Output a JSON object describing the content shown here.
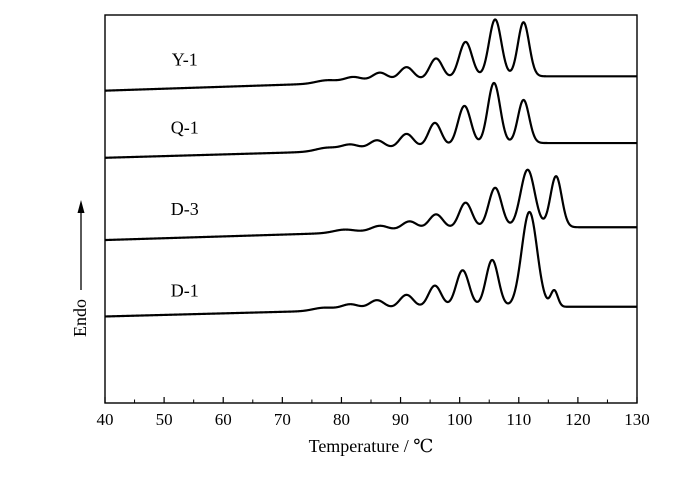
{
  "chart_data": {
    "type": "line",
    "title": "",
    "xlabel": "Temperature / ℃",
    "ylabel": "Endo",
    "xlim": [
      40,
      130
    ],
    "ylim": [
      0,
      100
    ],
    "x_ticks": [
      "40",
      "50",
      "60",
      "70",
      "80",
      "90",
      "100",
      "110",
      "120",
      "130"
    ],
    "y_ticks_visible": false,
    "grid": false,
    "legend": "none",
    "line_color": "#000000",
    "series": [
      {
        "name": "Y-1",
        "baseline": [
          [
            40,
            80.5
          ],
          [
            70,
            82.0
          ],
          [
            100,
            83.5
          ],
          [
            112,
            84.2
          ],
          [
            130,
            84.2
          ]
        ],
        "peaks": [
          {
            "x": 77.5,
            "height": 0.8,
            "width": 1.8
          },
          {
            "x": 82.0,
            "height": 1.4,
            "width": 1.5
          },
          {
            "x": 86.5,
            "height": 2.3,
            "width": 1.3
          },
          {
            "x": 91.0,
            "height": 3.5,
            "width": 1.2
          },
          {
            "x": 96.0,
            "height": 5.5,
            "width": 1.1
          },
          {
            "x": 101.0,
            "height": 9.5,
            "width": 1.1
          },
          {
            "x": 106.0,
            "height": 15.0,
            "width": 1.05
          },
          {
            "x": 110.8,
            "height": 14.0,
            "width": 0.95
          }
        ]
      },
      {
        "name": "Q-1",
        "baseline": [
          [
            40,
            63.2
          ],
          [
            70,
            64.5
          ],
          [
            100,
            66.0
          ],
          [
            112,
            67.0
          ],
          [
            130,
            67.0
          ]
        ],
        "peaks": [
          {
            "x": 77.5,
            "height": 0.9,
            "width": 1.8
          },
          {
            "x": 81.5,
            "height": 1.5,
            "width": 1.5
          },
          {
            "x": 86.0,
            "height": 2.4,
            "width": 1.3
          },
          {
            "x": 91.0,
            "height": 3.8,
            "width": 1.2
          },
          {
            "x": 95.8,
            "height": 6.4,
            "width": 1.1
          },
          {
            "x": 100.8,
            "height": 10.5,
            "width": 1.1
          },
          {
            "x": 105.8,
            "height": 16.0,
            "width": 1.05
          },
          {
            "x": 110.8,
            "height": 11.2,
            "width": 0.95
          }
        ]
      },
      {
        "name": "D-3",
        "baseline": [
          [
            40,
            42.0
          ],
          [
            70,
            43.4
          ],
          [
            100,
            44.8
          ],
          [
            118,
            45.3
          ],
          [
            130,
            45.3
          ]
        ],
        "peaks": [
          {
            "x": 80.5,
            "height": 0.8,
            "width": 1.8
          },
          {
            "x": 86.5,
            "height": 1.5,
            "width": 1.5
          },
          {
            "x": 91.5,
            "height": 2.4,
            "width": 1.3
          },
          {
            "x": 96.0,
            "height": 4.0,
            "width": 1.2
          },
          {
            "x": 101.0,
            "height": 6.8,
            "width": 1.1
          },
          {
            "x": 106.0,
            "height": 10.5,
            "width": 1.1
          },
          {
            "x": 111.5,
            "height": 15.0,
            "width": 1.2
          },
          {
            "x": 116.3,
            "height": 13.2,
            "width": 0.95
          }
        ]
      },
      {
        "name": "D-1",
        "baseline": [
          [
            40,
            22.3
          ],
          [
            70,
            23.5
          ],
          [
            100,
            24.6
          ],
          [
            118,
            24.8
          ],
          [
            130,
            24.8
          ]
        ],
        "peaks": [
          {
            "x": 77.0,
            "height": 0.8,
            "width": 1.8
          },
          {
            "x": 81.5,
            "height": 1.5,
            "width": 1.5
          },
          {
            "x": 86.0,
            "height": 2.4,
            "width": 1.3
          },
          {
            "x": 91.0,
            "height": 3.6,
            "width": 1.2
          },
          {
            "x": 95.8,
            "height": 5.8,
            "width": 1.1
          },
          {
            "x": 100.5,
            "height": 9.6,
            "width": 1.1
          },
          {
            "x": 105.5,
            "height": 12.2,
            "width": 1.05
          },
          {
            "x": 111.8,
            "height": 24.5,
            "width": 1.3
          },
          {
            "x": 116.0,
            "height": 4.2,
            "width": 0.6
          }
        ]
      }
    ],
    "curve_labels": [
      {
        "text": "Y-1",
        "x": 53.5,
        "y": 87.0
      },
      {
        "text": "Q-1",
        "x": 53.5,
        "y": 69.5
      },
      {
        "text": "D-3",
        "x": 53.5,
        "y": 48.5
      },
      {
        "text": "D-1",
        "x": 53.5,
        "y": 27.5
      }
    ]
  }
}
